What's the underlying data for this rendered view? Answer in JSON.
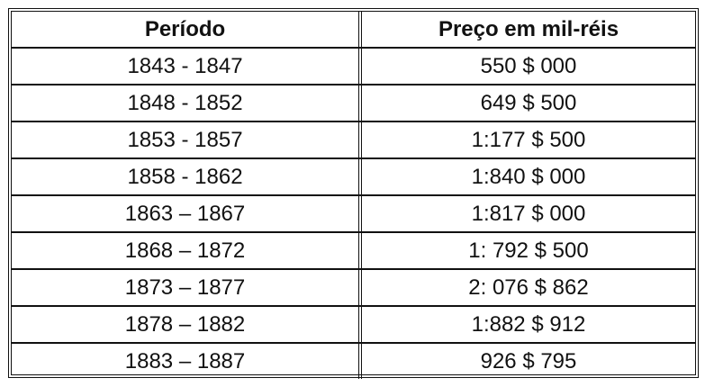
{
  "table": {
    "headers": [
      "Período",
      "Preço em mil-réis"
    ],
    "rows": [
      [
        "1843 - 1847",
        "550 $ 000"
      ],
      [
        "1848 - 1852",
        "649 $ 500"
      ],
      [
        "1853 - 1857",
        "1:177 $ 500"
      ],
      [
        "1858 - 1862",
        "1:840 $ 000"
      ],
      [
        "1863 – 1867",
        "1:817 $ 000"
      ],
      [
        "1868 – 1872",
        "1: 792 $ 500"
      ],
      [
        "1873 – 1877",
        "2: 076 $ 862"
      ],
      [
        "1878 – 1882",
        "1:882 $ 912"
      ],
      [
        "1883 – 1887",
        "926 $ 795"
      ]
    ]
  }
}
